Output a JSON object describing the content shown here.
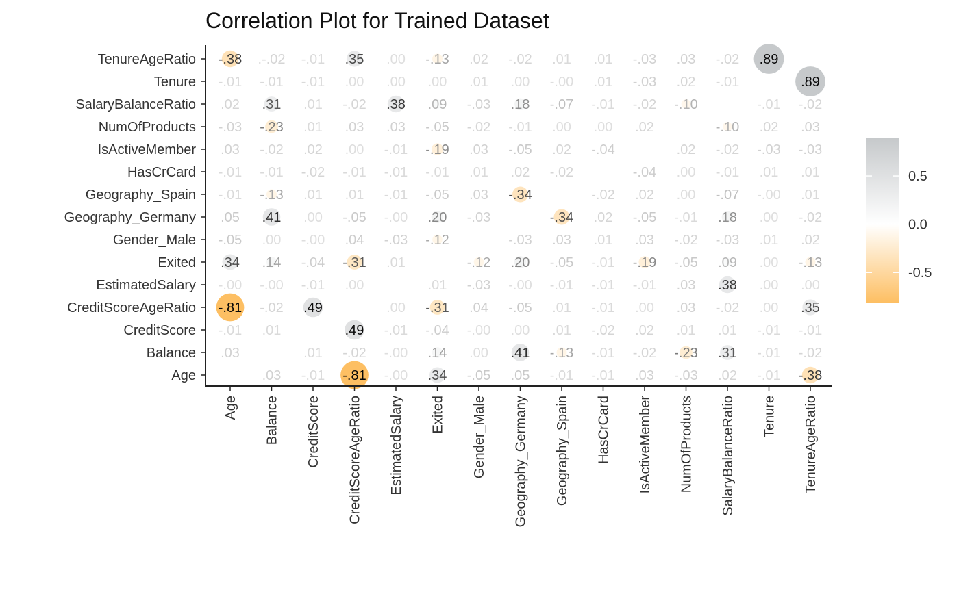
{
  "chart_data": {
    "type": "heatmap",
    "title": "Correlation Plot for Trained Dataset",
    "xlabel": "",
    "ylabel": "",
    "variables": [
      "Age",
      "Balance",
      "CreditScore",
      "CreditScoreAgeRatio",
      "EstimatedSalary",
      "Exited",
      "Gender_Male",
      "Geography_Germany",
      "Geography_Spain",
      "HasCrCard",
      "IsActiveMember",
      "NumOfProducts",
      "SalaryBalanceRatio",
      "Tenure",
      "TenureAgeRatio"
    ],
    "rows_top_to_bottom": [
      "TenureAgeRatio",
      "Tenure",
      "SalaryBalanceRatio",
      "NumOfProducts",
      "IsActiveMember",
      "HasCrCard",
      "Geography_Spain",
      "Geography_Germany",
      "Gender_Male",
      "Exited",
      "EstimatedSalary",
      "CreditScoreAgeRatio",
      "CreditScore",
      "Balance",
      "Age"
    ],
    "columns": [
      "Age",
      "Balance",
      "CreditScore",
      "CreditScoreAgeRatio",
      "EstimatedSalary",
      "Exited",
      "Gender_Male",
      "Geography_Germany",
      "Geography_Spain",
      "HasCrCard",
      "IsActiveMember",
      "NumOfProducts",
      "SalaryBalanceRatio",
      "Tenure",
      "TenureAgeRatio"
    ],
    "labels": [
      [
        "-.38",
        ".-.02",
        "-.01",
        ".35",
        ".00",
        "-.13",
        ".02",
        "-.02",
        ".01",
        ".01",
        "-.03",
        ".03",
        "-.02",
        ".89",
        ""
      ],
      [
        "-.01",
        "-.01",
        "-.01",
        ".00",
        ".00",
        ".00",
        ".01",
        ".00",
        "-.00",
        ".01",
        "-.03",
        ".02",
        "-.01",
        "",
        ".89"
      ],
      [
        ".02",
        ".31",
        ".01",
        "-.02",
        ".38",
        ".09",
        "-.03",
        ".18",
        "-.07",
        "-.01",
        "-.02",
        "-.10",
        "",
        "-.01",
        "-.02"
      ],
      [
        "-.03",
        "-.23",
        ".01",
        ".03",
        ".03",
        "-.05",
        "-.02",
        "-.01",
        ".00",
        ".00",
        ".02",
        "",
        "-.10",
        ".02",
        ".03"
      ],
      [
        ".03",
        "-.02",
        ".02",
        ".00",
        "-.01",
        "-.19",
        ".03",
        "-.05",
        ".02",
        "-.04",
        "",
        ".02",
        "-.02",
        "-.03",
        "-.03"
      ],
      [
        "-.01",
        "-.01",
        "-.02",
        "-.01",
        "-.01",
        "-.01",
        ".01",
        ".02",
        "-.02",
        "",
        "-.04",
        ".00",
        "-.01",
        ".01",
        ".01"
      ],
      [
        "-.01",
        "-.13",
        ".01",
        ".01",
        "-.01",
        "-.05",
        ".03",
        "-.34",
        "",
        "-.02",
        ".02",
        ".00",
        "-.07",
        "-.00",
        ".01"
      ],
      [
        ".05",
        ".41",
        ".00",
        "-.05",
        "-.00",
        ".20",
        "-.03",
        "",
        "-.34",
        ".02",
        "-.05",
        "-.01",
        ".18",
        ".00",
        "-.02"
      ],
      [
        "-.05",
        ".00",
        "-.00",
        ".04",
        "-.03",
        "-.12",
        "",
        "-.03",
        ".03",
        ".01",
        ".03",
        "-.02",
        "-.03",
        ".01",
        ".02"
      ],
      [
        ".34",
        ".14",
        "-.04",
        "-.31",
        ".01",
        "",
        "-.12",
        ".20",
        "-.05",
        "-.01",
        "-.19",
        "-.05",
        ".09",
        ".00",
        "-.13"
      ],
      [
        "-.00",
        "-.00",
        "-.01",
        ".00",
        "",
        ".01",
        "-.03",
        "-.00",
        "-.01",
        "-.01",
        "-.01",
        ".03",
        ".38",
        ".00",
        ".00"
      ],
      [
        "-.81",
        "-.02",
        ".49",
        "",
        ".00",
        "-.31",
        ".04",
        "-.05",
        ".01",
        "-.01",
        ".00",
        ".03",
        "-.02",
        ".00",
        ".35"
      ],
      [
        "-.01",
        ".01",
        "",
        ".49",
        "-.01",
        "-.04",
        "-.00",
        ".00",
        ".01",
        "-.02",
        ".02",
        ".01",
        ".01",
        "-.01",
        "-.01"
      ],
      [
        ".03",
        "",
        ".01",
        "-.02",
        "-.00",
        ".14",
        ".00",
        ".41",
        "-.13",
        "-.01",
        "-.02",
        "-.23",
        ".31",
        "-.01",
        "-.02"
      ],
      [
        "",
        ".03",
        "-.01",
        "-.81",
        "-.00",
        ".34",
        "-.05",
        ".05",
        "-.01",
        "-.01",
        ".03",
        "-.03",
        ".02",
        "-.01",
        "-.38"
      ]
    ],
    "legend": {
      "ticks": [
        0.5,
        0.0,
        -0.5
      ],
      "tick_labels": [
        "0.5",
        "0.0",
        "-0.5"
      ],
      "range": [
        -0.81,
        0.89
      ],
      "placement": "right"
    },
    "colors": {
      "positive": "#c6c9cb",
      "zero": "#ffffff",
      "negative": "#fdbf63",
      "axis": "#222222"
    },
    "grid": false
  }
}
